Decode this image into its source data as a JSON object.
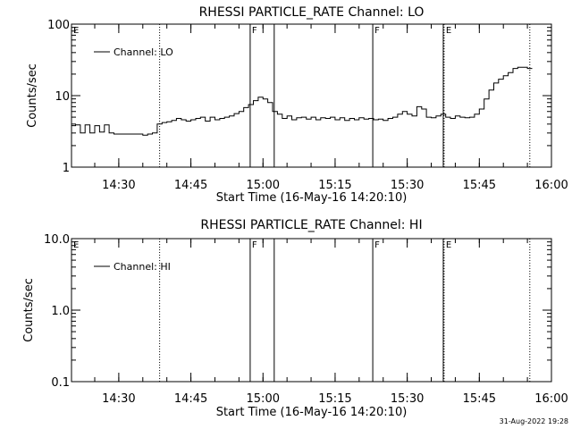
{
  "timestamp": "31-Aug-2022 19:28",
  "chart_data": [
    {
      "type": "line",
      "title": "RHESSI PARTICLE_RATE Channel: LO",
      "xlabel": "Start Time (16-May-16 14:20:10)",
      "ylabel": "Counts/sec",
      "yscale": "log",
      "ylim": [
        1,
        100
      ],
      "yticks": [
        {
          "v": 1,
          "label": "1"
        },
        {
          "v": 10,
          "label": "10"
        },
        {
          "v": 100,
          "label": "100"
        }
      ],
      "xlim": [
        "14:20:10",
        "16:00"
      ],
      "xticks": [
        "14:30",
        "14:45",
        "15:00",
        "15:15",
        "15:30",
        "15:45",
        "16:00"
      ],
      "legend": "top-left",
      "series": [
        {
          "name": "Channel: LO",
          "x": [
            "14:20",
            "14:21",
            "14:22",
            "14:23",
            "14:24",
            "14:25",
            "14:26",
            "14:27",
            "14:28",
            "14:29",
            "14:30",
            "14:31",
            "14:32",
            "14:33",
            "14:34",
            "14:35",
            "14:36",
            "14:37",
            "14:38",
            "14:39",
            "14:40",
            "14:41",
            "14:42",
            "14:43",
            "14:44",
            "14:45",
            "14:46",
            "14:47",
            "14:48",
            "14:49",
            "14:50",
            "14:51",
            "14:52",
            "14:53",
            "14:54",
            "14:55",
            "14:56",
            "14:57",
            "14:58",
            "14:59",
            "15:00",
            "15:01",
            "15:02",
            "15:03",
            "15:04",
            "15:05",
            "15:06",
            "15:07",
            "15:08",
            "15:09",
            "15:10",
            "15:11",
            "15:12",
            "15:13",
            "15:14",
            "15:15",
            "15:16",
            "15:17",
            "15:18",
            "15:19",
            "15:20",
            "15:21",
            "15:22",
            "15:23",
            "15:24",
            "15:25",
            "15:26",
            "15:27",
            "15:28",
            "15:29",
            "15:30",
            "15:31",
            "15:32",
            "15:33",
            "15:34",
            "15:35",
            "15:36",
            "15:37",
            "15:38",
            "15:39",
            "15:40",
            "15:41",
            "15:42",
            "15:43",
            "15:44",
            "15:45",
            "15:46",
            "15:47",
            "15:48",
            "15:49",
            "15:50",
            "15:51",
            "15:52",
            "15:53",
            "15:54",
            "15:55"
          ],
          "values": [
            3.8,
            3.9,
            3.0,
            3.9,
            3.0,
            3.8,
            3.1,
            3.9,
            3.0,
            2.9,
            2.9,
            2.9,
            2.9,
            2.9,
            2.9,
            2.8,
            2.9,
            3.0,
            4.0,
            4.2,
            4.3,
            4.5,
            4.8,
            4.6,
            4.4,
            4.6,
            4.8,
            5.0,
            4.4,
            5.0,
            4.6,
            4.8,
            5.0,
            5.2,
            5.6,
            6.0,
            6.8,
            7.5,
            8.5,
            9.5,
            9.0,
            8.0,
            6.0,
            5.5,
            4.8,
            5.2,
            4.6,
            4.9,
            5.0,
            4.7,
            5.0,
            4.6,
            4.9,
            4.8,
            5.0,
            4.6,
            4.9,
            4.5,
            4.8,
            4.6,
            4.9,
            4.7,
            4.8,
            4.6,
            4.7,
            4.5,
            4.8,
            5.0,
            5.5,
            6.0,
            5.5,
            5.2,
            7.0,
            6.5,
            5.0,
            4.9,
            5.2,
            5.5,
            5.0,
            4.8,
            5.2,
            5.0,
            4.9,
            5.0,
            5.5,
            6.5,
            9.0,
            12.0,
            15.0,
            17.0,
            19.0,
            21.0,
            24.0,
            25.0,
            25.0,
            24.0
          ]
        }
      ],
      "markers": [
        {
          "label": "E",
          "style": "dotted"
        },
        {
          "label": "",
          "style": "dotted"
        },
        {
          "label": "F",
          "style": "solid"
        },
        {
          "label": "",
          "style": "solid"
        },
        {
          "label": "F",
          "style": "solid"
        },
        {
          "label": "",
          "style": "solid"
        },
        {
          "label": "E",
          "style": "dotted"
        },
        {
          "label": "",
          "style": "dotted"
        }
      ],
      "marker_times": [
        "14:20:10",
        "14:38:30",
        "14:57:20",
        "15:02:20",
        "15:22:50",
        "15:37:30",
        "15:37:40",
        "15:55:30"
      ]
    },
    {
      "type": "line",
      "title": "RHESSI PARTICLE_RATE Channel: HI",
      "xlabel": "Start Time (16-May-16 14:20:10)",
      "ylabel": "Counts/sec",
      "yscale": "log",
      "ylim": [
        0.1,
        10
      ],
      "yticks": [
        {
          "v": 0.1,
          "label": "0.1"
        },
        {
          "v": 1,
          "label": "1.0"
        },
        {
          "v": 10,
          "label": "10.0"
        }
      ],
      "xlim": [
        "14:20:10",
        "16:00"
      ],
      "xticks": [
        "14:30",
        "14:45",
        "15:00",
        "15:15",
        "15:30",
        "15:45",
        "16:00"
      ],
      "legend": "top-left",
      "series": [
        {
          "name": "Channel: HI",
          "x": [],
          "values": []
        }
      ],
      "markers": [
        {
          "label": "E",
          "style": "dotted"
        },
        {
          "label": "",
          "style": "dotted"
        },
        {
          "label": "F",
          "style": "solid"
        },
        {
          "label": "",
          "style": "solid"
        },
        {
          "label": "F",
          "style": "solid"
        },
        {
          "label": "",
          "style": "solid"
        },
        {
          "label": "E",
          "style": "dotted"
        },
        {
          "label": "",
          "style": "dotted"
        }
      ],
      "marker_times": [
        "14:20:10",
        "14:38:30",
        "14:57:20",
        "15:02:20",
        "15:22:50",
        "15:37:30",
        "15:37:40",
        "15:55:30"
      ]
    }
  ]
}
